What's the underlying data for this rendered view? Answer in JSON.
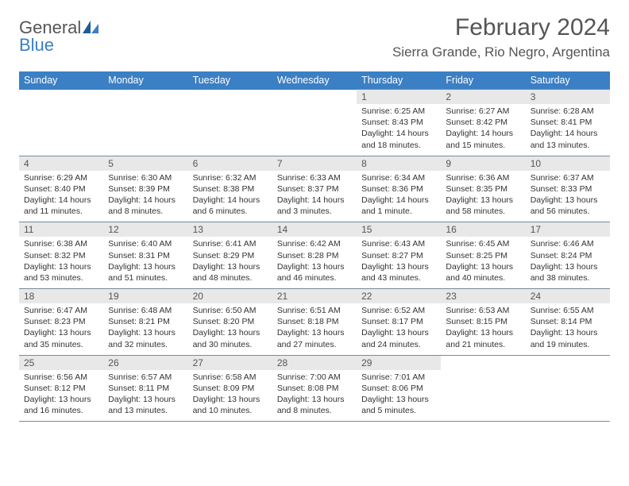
{
  "brand": {
    "part1": "General",
    "part2": "Blue"
  },
  "title": "February 2024",
  "location": "Sierra Grande, Rio Negro, Argentina",
  "colors": {
    "header_bg": "#3b7fc4",
    "header_fg": "#ffffff",
    "daynum_bg": "#e8e8e8",
    "cell_border": "#7a8a9a",
    "text": "#333333",
    "muted": "#555555"
  },
  "typography": {
    "title_size": 30,
    "location_size": 17,
    "header_size": 12.5,
    "daynum_size": 12,
    "cell_size": 10.5
  },
  "dayNames": [
    "Sunday",
    "Monday",
    "Tuesday",
    "Wednesday",
    "Thursday",
    "Friday",
    "Saturday"
  ],
  "firstWeekday": 4,
  "daysInMonth": 29,
  "days": {
    "1": {
      "sunrise": "6:25 AM",
      "sunset": "8:43 PM",
      "daylight": "14 hours and 18 minutes."
    },
    "2": {
      "sunrise": "6:27 AM",
      "sunset": "8:42 PM",
      "daylight": "14 hours and 15 minutes."
    },
    "3": {
      "sunrise": "6:28 AM",
      "sunset": "8:41 PM",
      "daylight": "14 hours and 13 minutes."
    },
    "4": {
      "sunrise": "6:29 AM",
      "sunset": "8:40 PM",
      "daylight": "14 hours and 11 minutes."
    },
    "5": {
      "sunrise": "6:30 AM",
      "sunset": "8:39 PM",
      "daylight": "14 hours and 8 minutes."
    },
    "6": {
      "sunrise": "6:32 AM",
      "sunset": "8:38 PM",
      "daylight": "14 hours and 6 minutes."
    },
    "7": {
      "sunrise": "6:33 AM",
      "sunset": "8:37 PM",
      "daylight": "14 hours and 3 minutes."
    },
    "8": {
      "sunrise": "6:34 AM",
      "sunset": "8:36 PM",
      "daylight": "14 hours and 1 minute."
    },
    "9": {
      "sunrise": "6:36 AM",
      "sunset": "8:35 PM",
      "daylight": "13 hours and 58 minutes."
    },
    "10": {
      "sunrise": "6:37 AM",
      "sunset": "8:33 PM",
      "daylight": "13 hours and 56 minutes."
    },
    "11": {
      "sunrise": "6:38 AM",
      "sunset": "8:32 PM",
      "daylight": "13 hours and 53 minutes."
    },
    "12": {
      "sunrise": "6:40 AM",
      "sunset": "8:31 PM",
      "daylight": "13 hours and 51 minutes."
    },
    "13": {
      "sunrise": "6:41 AM",
      "sunset": "8:29 PM",
      "daylight": "13 hours and 48 minutes."
    },
    "14": {
      "sunrise": "6:42 AM",
      "sunset": "8:28 PM",
      "daylight": "13 hours and 46 minutes."
    },
    "15": {
      "sunrise": "6:43 AM",
      "sunset": "8:27 PM",
      "daylight": "13 hours and 43 minutes."
    },
    "16": {
      "sunrise": "6:45 AM",
      "sunset": "8:25 PM",
      "daylight": "13 hours and 40 minutes."
    },
    "17": {
      "sunrise": "6:46 AM",
      "sunset": "8:24 PM",
      "daylight": "13 hours and 38 minutes."
    },
    "18": {
      "sunrise": "6:47 AM",
      "sunset": "8:23 PM",
      "daylight": "13 hours and 35 minutes."
    },
    "19": {
      "sunrise": "6:48 AM",
      "sunset": "8:21 PM",
      "daylight": "13 hours and 32 minutes."
    },
    "20": {
      "sunrise": "6:50 AM",
      "sunset": "8:20 PM",
      "daylight": "13 hours and 30 minutes."
    },
    "21": {
      "sunrise": "6:51 AM",
      "sunset": "8:18 PM",
      "daylight": "13 hours and 27 minutes."
    },
    "22": {
      "sunrise": "6:52 AM",
      "sunset": "8:17 PM",
      "daylight": "13 hours and 24 minutes."
    },
    "23": {
      "sunrise": "6:53 AM",
      "sunset": "8:15 PM",
      "daylight": "13 hours and 21 minutes."
    },
    "24": {
      "sunrise": "6:55 AM",
      "sunset": "8:14 PM",
      "daylight": "13 hours and 19 minutes."
    },
    "25": {
      "sunrise": "6:56 AM",
      "sunset": "8:12 PM",
      "daylight": "13 hours and 16 minutes."
    },
    "26": {
      "sunrise": "6:57 AM",
      "sunset": "8:11 PM",
      "daylight": "13 hours and 13 minutes."
    },
    "27": {
      "sunrise": "6:58 AM",
      "sunset": "8:09 PM",
      "daylight": "13 hours and 10 minutes."
    },
    "28": {
      "sunrise": "7:00 AM",
      "sunset": "8:08 PM",
      "daylight": "13 hours and 8 minutes."
    },
    "29": {
      "sunrise": "7:01 AM",
      "sunset": "8:06 PM",
      "daylight": "13 hours and 5 minutes."
    }
  }
}
